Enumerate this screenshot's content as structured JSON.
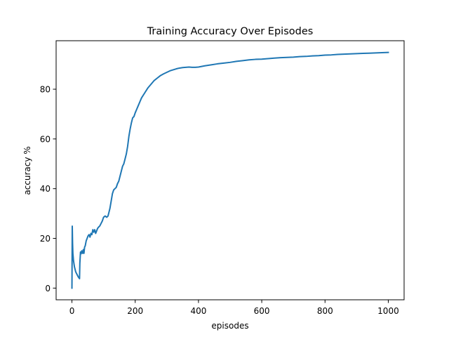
{
  "chart_data": {
    "type": "line",
    "title": "Training Accuracy Over Episodes",
    "xlabel": "episodes",
    "ylabel": "accuracy %",
    "xlim": [
      -50,
      1050
    ],
    "ylim": [
      -4.7,
      99.5
    ],
    "xticks": [
      0,
      200,
      400,
      600,
      800,
      1000
    ],
    "yticks": [
      0,
      20,
      40,
      60,
      80
    ],
    "grid": false,
    "line_color": "#1f77b4",
    "series": [
      {
        "points": [
          [
            0,
            0
          ],
          [
            1,
            24.9
          ],
          [
            2,
            18
          ],
          [
            3,
            14
          ],
          [
            5,
            11
          ],
          [
            8,
            8.5
          ],
          [
            12,
            6.5
          ],
          [
            16,
            5.5
          ],
          [
            20,
            4.5
          ],
          [
            24,
            3.8
          ],
          [
            25,
            10
          ],
          [
            27,
            14.5
          ],
          [
            29,
            13.8
          ],
          [
            31,
            15
          ],
          [
            34,
            14
          ],
          [
            36,
            15.5
          ],
          [
            38,
            14
          ],
          [
            40,
            16.5
          ],
          [
            42,
            17
          ],
          [
            45,
            19
          ],
          [
            48,
            20
          ],
          [
            51,
            21
          ],
          [
            54,
            21.5
          ],
          [
            57,
            20.5
          ],
          [
            60,
            22
          ],
          [
            63,
            21.5
          ],
          [
            66,
            23.5
          ],
          [
            69,
            22.5
          ],
          [
            72,
            23.5
          ],
          [
            75,
            22
          ],
          [
            78,
            23
          ],
          [
            81,
            24
          ],
          [
            84,
            24.5
          ],
          [
            88,
            25
          ],
          [
            92,
            26
          ],
          [
            96,
            27
          ],
          [
            100,
            28.5
          ],
          [
            105,
            29
          ],
          [
            110,
            28.5
          ],
          [
            114,
            29
          ],
          [
            117,
            30.5
          ],
          [
            120,
            32
          ],
          [
            124,
            35
          ],
          [
            128,
            38
          ],
          [
            132,
            39.5
          ],
          [
            136,
            40
          ],
          [
            140,
            40.5
          ],
          [
            144,
            42
          ],
          [
            148,
            43
          ],
          [
            152,
            45
          ],
          [
            156,
            47
          ],
          [
            160,
            49
          ],
          [
            164,
            50
          ],
          [
            168,
            52
          ],
          [
            172,
            54
          ],
          [
            176,
            57
          ],
          [
            180,
            61
          ],
          [
            184,
            64
          ],
          [
            188,
            66.5
          ],
          [
            192,
            68.5
          ],
          [
            196,
            69
          ],
          [
            200,
            70.5
          ],
          [
            205,
            72
          ],
          [
            210,
            73.5
          ],
          [
            215,
            75
          ],
          [
            220,
            76.5
          ],
          [
            230,
            78.5
          ],
          [
            240,
            80.5
          ],
          [
            250,
            82
          ],
          [
            260,
            83.5
          ],
          [
            270,
            84.5
          ],
          [
            280,
            85.5
          ],
          [
            290,
            86.2
          ],
          [
            300,
            86.8
          ],
          [
            310,
            87.4
          ],
          [
            320,
            87.8
          ],
          [
            330,
            88.2
          ],
          [
            340,
            88.5
          ],
          [
            350,
            88.7
          ],
          [
            360,
            88.8
          ],
          [
            370,
            88.9
          ],
          [
            380,
            88.8
          ],
          [
            390,
            88.8
          ],
          [
            400,
            88.9
          ],
          [
            420,
            89.4
          ],
          [
            440,
            89.8
          ],
          [
            460,
            90.2
          ],
          [
            480,
            90.5
          ],
          [
            500,
            90.8
          ],
          [
            520,
            91.2
          ],
          [
            540,
            91.5
          ],
          [
            560,
            91.8
          ],
          [
            580,
            92
          ],
          [
            600,
            92.1
          ],
          [
            620,
            92.3
          ],
          [
            640,
            92.5
          ],
          [
            660,
            92.7
          ],
          [
            680,
            92.8
          ],
          [
            700,
            92.9
          ],
          [
            720,
            93.1
          ],
          [
            740,
            93.2
          ],
          [
            760,
            93.4
          ],
          [
            780,
            93.5
          ],
          [
            800,
            93.7
          ],
          [
            820,
            93.8
          ],
          [
            840,
            94
          ],
          [
            860,
            94.1
          ],
          [
            880,
            94.2
          ],
          [
            900,
            94.3
          ],
          [
            920,
            94.4
          ],
          [
            940,
            94.5
          ],
          [
            960,
            94.6
          ],
          [
            980,
            94.7
          ],
          [
            1000,
            94.8
          ]
        ]
      }
    ]
  }
}
